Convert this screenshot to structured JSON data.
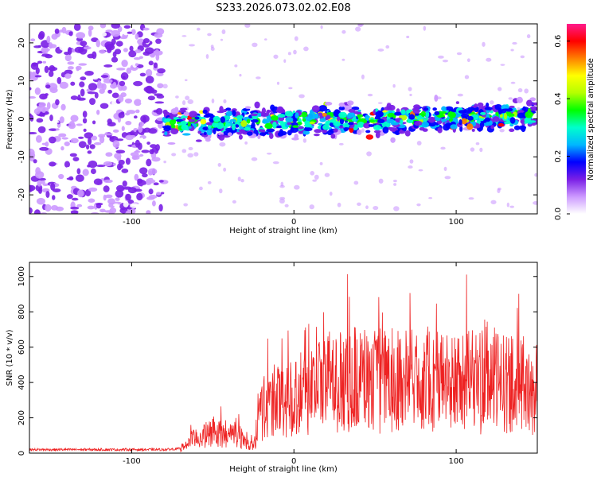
{
  "title": "S233.2026.073.02.02.E08",
  "chart_data": [
    {
      "type": "heatmap",
      "xlabel": "Height of straight line (km)",
      "ylabel": "Frequency (Hz)",
      "xlim": [
        -163,
        150
      ],
      "ylim": [
        -25,
        25
      ],
      "xticks": [
        -100,
        0,
        100
      ],
      "yticks": [
        -20,
        -10,
        0,
        10,
        20
      ],
      "colorbar": {
        "label": "Normalized spectral amplitude",
        "range": [
          0.0,
          0.66
        ],
        "ticks": [
          0.0,
          0.2,
          0.4,
          0.6
        ],
        "colors": [
          "#ffffff",
          "#cc99ff",
          "#7a1fe6",
          "#0000ff",
          "#00b7ff",
          "#00ffcc",
          "#00ff00",
          "#b4ff00",
          "#ffff00",
          "#ff8000",
          "#ff0000",
          "#ff1a8c"
        ]
      },
      "description_regions": [
        {
          "x": [
            -163,
            -80
          ],
          "freq": [
            -25,
            25
          ],
          "amplitude": [
            0.05,
            0.1
          ]
        },
        {
          "x": [
            -80,
            150
          ],
          "freq": [
            -8,
            5
          ],
          "amplitude": [
            0.1,
            0.6
          ]
        }
      ]
    },
    {
      "type": "line",
      "xlabel": "Height of straight line (km)",
      "ylabel": "SNR (10 * v/v)",
      "xlim": [
        -163,
        150
      ],
      "ylim": [
        0,
        1080
      ],
      "xticks": [
        -100,
        0,
        100
      ],
      "yticks": [
        0,
        200,
        400,
        600,
        800,
        1000
      ],
      "color": "#ee2222",
      "series": [
        {
          "name": "SNR",
          "x": [
            -163,
            -140,
            -120,
            -100,
            -80,
            -70,
            -62,
            -55,
            -50,
            -45,
            -40,
            -35,
            -30,
            -25,
            -22,
            -20,
            -10,
            0,
            10,
            20,
            30,
            40,
            50,
            60,
            70,
            80,
            90,
            100,
            110,
            120,
            130,
            140,
            150
          ],
          "y": [
            20,
            20,
            20,
            20,
            20,
            25,
            80,
            100,
            120,
            110,
            100,
            120,
            60,
            40,
            150,
            250,
            300,
            330,
            360,
            400,
            420,
            420,
            410,
            420,
            430,
            420,
            430,
            400,
            420,
            430,
            400,
            380,
            360
          ]
        }
      ]
    }
  ]
}
